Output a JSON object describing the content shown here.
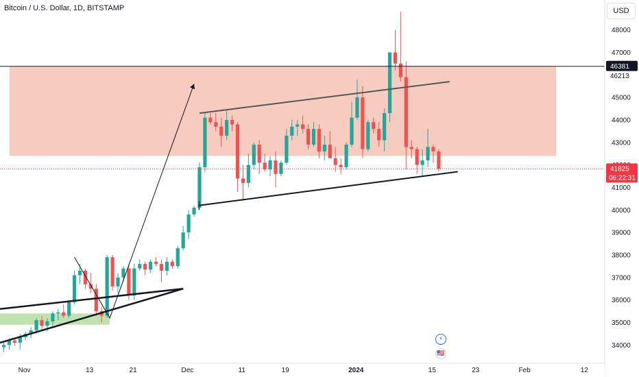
{
  "header": {
    "symbol_title": "Bitcoin / U.S. Dollar, 1D, BITSTAMP"
  },
  "currency_button": "USD",
  "colors": {
    "up": "#26a69a",
    "down": "#ef5350",
    "resistance_zone": "#f5c9bd",
    "support_zone": "#b9dfa8",
    "drawing": "#131722",
    "price_tag_bg": "#f23645",
    "level_tag_bg": "#131722"
  },
  "price_tags": {
    "level": "46381",
    "current_price": "41825",
    "countdown": "06:22:31",
    "secondary_level": "46213"
  },
  "events": [
    {
      "icon": "lightning-icon",
      "glyph": "⚡"
    },
    {
      "icon": "us-flag-icon",
      "glyph": "🇺🇸"
    }
  ],
  "chart_data": {
    "type": "candlestick",
    "title": "Bitcoin / U.S. Dollar, 1D, BITSTAMP",
    "ylim": [
      33600,
      48600
    ],
    "y_ticks": [
      34000,
      35000,
      36000,
      37000,
      38000,
      39000,
      40000,
      41000,
      42000,
      43000,
      44000,
      45000,
      46000,
      47000,
      48000
    ],
    "x_ticks": [
      {
        "label": "Nov",
        "day": 0
      },
      {
        "label": "13",
        "day": 12
      },
      {
        "label": "21",
        "day": 20
      },
      {
        "label": "Dec",
        "day": 30
      },
      {
        "label": "11",
        "day": 40
      },
      {
        "label": "19",
        "day": 48
      },
      {
        "label": "2024",
        "day": 61
      },
      {
        "label": "15",
        "day": 75
      },
      {
        "label": "23",
        "day": 83
      },
      {
        "label": "Feb",
        "day": 92
      },
      {
        "label": "12",
        "day": 103
      }
    ],
    "candles": [
      [
        33900,
        34100,
        33700,
        34000
      ],
      [
        34000,
        34300,
        33800,
        34200
      ],
      [
        34200,
        34300,
        33950,
        34100
      ],
      [
        34100,
        34500,
        33800,
        34350
      ],
      [
        34350,
        34600,
        34200,
        34500
      ],
      [
        34500,
        34800,
        34300,
        34650
      ],
      [
        34650,
        35200,
        34500,
        35100
      ],
      [
        35100,
        35300,
        34700,
        34850
      ],
      [
        34850,
        35200,
        34600,
        35050
      ],
      [
        35050,
        35500,
        34800,
        35400
      ],
      [
        35400,
        35600,
        35100,
        35450
      ],
      [
        35450,
        35800,
        35200,
        35300
      ],
      [
        35300,
        36000,
        35200,
        35900
      ],
      [
        35900,
        37300,
        35800,
        37100
      ],
      [
        37100,
        37600,
        36700,
        37300
      ],
      [
        37300,
        37400,
        36500,
        36700
      ],
      [
        36700,
        37200,
        36300,
        36500
      ],
      [
        36500,
        36700,
        35300,
        35500
      ],
      [
        35500,
        35700,
        35000,
        35300
      ],
      [
        35300,
        38000,
        35200,
        37900
      ],
      [
        37900,
        38000,
        36400,
        36600
      ],
      [
        36600,
        37200,
        36300,
        37000
      ],
      [
        37000,
        37500,
        36800,
        37400
      ],
      [
        37400,
        37600,
        36000,
        36200
      ],
      [
        36200,
        37600,
        36000,
        37400
      ],
      [
        37400,
        37800,
        37300,
        37600
      ],
      [
        37600,
        37700,
        37100,
        37350
      ],
      [
        37350,
        37800,
        37200,
        37700
      ],
      [
        37700,
        37900,
        37500,
        37600
      ],
      [
        37600,
        37800,
        36800,
        37300
      ],
      [
        37300,
        37900,
        37100,
        37700
      ],
      [
        37700,
        37800,
        37400,
        37500
      ],
      [
        37500,
        38400,
        37400,
        38300
      ],
      [
        38300,
        39300,
        38200,
        39000
      ],
      [
        39000,
        40000,
        38700,
        39800
      ],
      [
        39800,
        40200,
        39700,
        40100
      ],
      [
        40100,
        42100,
        40000,
        41900
      ],
      [
        41900,
        44300,
        41700,
        44100
      ],
      [
        44100,
        44300,
        43800,
        43900
      ],
      [
        43900,
        44300,
        43500,
        43700
      ],
      [
        43700,
        44100,
        42800,
        43300
      ],
      [
        43300,
        44400,
        43100,
        44000
      ],
      [
        44000,
        44200,
        43500,
        43800
      ],
      [
        43800,
        43900,
        40800,
        41400
      ],
      [
        41400,
        42000,
        40400,
        41200
      ],
      [
        41200,
        42500,
        41000,
        42000
      ],
      [
        42000,
        43000,
        41800,
        42900
      ],
      [
        42900,
        43100,
        41600,
        42100
      ],
      [
        42100,
        42500,
        41700,
        41800
      ],
      [
        41800,
        42400,
        41500,
        42200
      ],
      [
        42200,
        42600,
        41000,
        41600
      ],
      [
        41600,
        42200,
        41500,
        42100
      ],
      [
        42100,
        43600,
        42000,
        43300
      ],
      [
        43300,
        44000,
        43100,
        43700
      ],
      [
        43700,
        44000,
        43300,
        43800
      ],
      [
        43800,
        44200,
        43400,
        43600
      ],
      [
        43600,
        43800,
        42700,
        42900
      ],
      [
        42900,
        43900,
        42800,
        43600
      ],
      [
        43600,
        43800,
        42300,
        42600
      ],
      [
        42600,
        43300,
        42200,
        42900
      ],
      [
        42900,
        43500,
        42300,
        42300
      ],
      [
        42300,
        42800,
        41700,
        42000
      ],
      [
        42000,
        42300,
        41600,
        41900
      ],
      [
        41900,
        43000,
        41800,
        42900
      ],
      [
        42900,
        44800,
        42800,
        44100
      ],
      [
        44100,
        45800,
        44000,
        45000
      ],
      [
        45000,
        45500,
        42300,
        42700
      ],
      [
        42700,
        44000,
        42600,
        43900
      ],
      [
        43900,
        44100,
        43400,
        43600
      ],
      [
        43600,
        43900,
        42800,
        43100
      ],
      [
        43100,
        44500,
        42600,
        44300
      ],
      [
        44300,
        47000,
        43900,
        47000
      ],
      [
        47000,
        48000,
        46200,
        46500
      ],
      [
        46500,
        48800,
        45700,
        45900
      ],
      [
        45900,
        46600,
        41800,
        42800
      ],
      [
        42800,
        43100,
        42300,
        42700
      ],
      [
        42700,
        42800,
        41600,
        42000
      ],
      [
        42000,
        42700,
        41500,
        42200
      ],
      [
        42200,
        43600,
        41900,
        42800
      ],
      [
        42800,
        42900,
        42100,
        42600
      ],
      [
        42600,
        42700,
        41700,
        41825
      ]
    ],
    "zones": [
      {
        "name": "resistance",
        "y0": 42400,
        "y1": 46381
      },
      {
        "name": "support",
        "y0": 34900,
        "y1": 35400
      }
    ]
  }
}
